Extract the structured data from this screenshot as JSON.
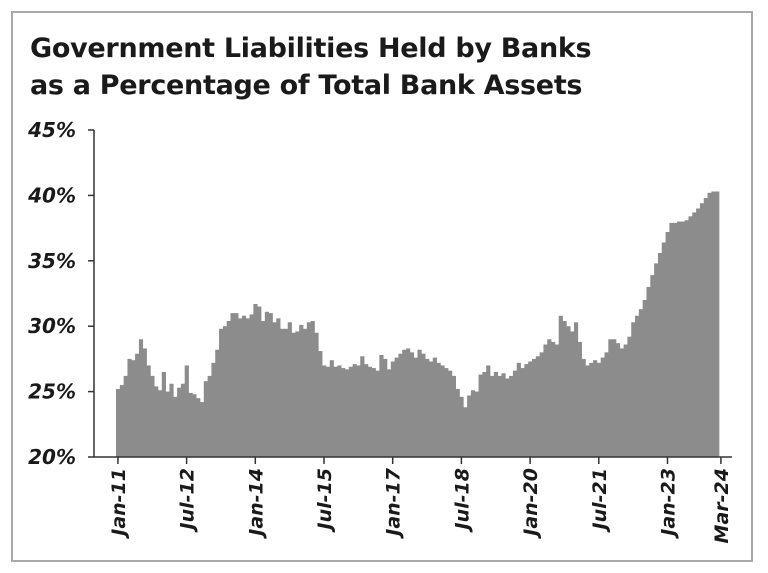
{
  "chart_data": {
    "type": "bar",
    "title_lines": [
      "Government Liabilities Held by Banks",
      "as a Percentage of Total Bank Assets"
    ],
    "xlabel": "",
    "ylabel": "",
    "ylim": [
      20,
      45
    ],
    "y_ticks": [
      {
        "value": 20,
        "label": "20%"
      },
      {
        "value": 25,
        "label": "25%"
      },
      {
        "value": 30,
        "label": "30%"
      },
      {
        "value": 35,
        "label": "35%"
      },
      {
        "value": 40,
        "label": "40%"
      },
      {
        "value": 45,
        "label": "45%"
      }
    ],
    "x_ticks": [
      {
        "index": 0,
        "label": "Jan-11"
      },
      {
        "index": 18,
        "label": "Jul-12"
      },
      {
        "index": 36,
        "label": "Jan-14"
      },
      {
        "index": 54,
        "label": "Jul-15"
      },
      {
        "index": 72,
        "label": "Jan-17"
      },
      {
        "index": 90,
        "label": "Jul-18"
      },
      {
        "index": 108,
        "label": "Jan-20"
      },
      {
        "index": 126,
        "label": "Jul-21"
      },
      {
        "index": 144,
        "label": "Jan-23"
      },
      {
        "index": 158,
        "label": "Mar-24"
      }
    ],
    "grid": false,
    "bar_color": "#8c8c8c",
    "values": [
      25.2,
      25.5,
      26.2,
      27.5,
      27.4,
      27.9,
      29.0,
      28.3,
      27.0,
      26.2,
      25.4,
      25.1,
      26.5,
      25.0,
      25.6,
      24.6,
      25.3,
      25.6,
      27.0,
      24.9,
      24.8,
      24.5,
      24.2,
      25.8,
      26.2,
      27.2,
      28.2,
      29.8,
      30.0,
      30.4,
      31.0,
      31.0,
      30.6,
      30.8,
      30.6,
      30.9,
      31.7,
      31.5,
      30.4,
      31.1,
      31.0,
      30.3,
      30.6,
      29.8,
      29.8,
      30.3,
      29.5,
      29.6,
      30.1,
      29.8,
      30.3,
      30.4,
      29.5,
      28.1,
      27.0,
      26.9,
      27.4,
      26.9,
      27.0,
      26.8,
      26.7,
      26.9,
      27.1,
      27.0,
      27.7,
      27.1,
      26.9,
      26.8,
      26.6,
      27.8,
      27.5,
      26.7,
      27.3,
      27.6,
      27.9,
      28.2,
      28.3,
      28.0,
      27.6,
      28.2,
      27.9,
      27.5,
      27.3,
      27.6,
      27.2,
      27.0,
      26.8,
      26.6,
      26.2,
      25.2,
      24.6,
      23.8,
      24.7,
      25.1,
      25.0,
      26.3,
      26.5,
      27.0,
      26.2,
      26.5,
      26.2,
      26.4,
      26.0,
      26.2,
      26.6,
      27.2,
      26.8,
      27.1,
      27.3,
      27.5,
      27.7,
      28.0,
      28.6,
      29.0,
      28.8,
      28.6,
      30.8,
      30.4,
      30.0,
      29.6,
      30.3,
      28.8,
      27.5,
      27.0,
      27.2,
      27.4,
      27.2,
      27.6,
      28.0,
      29.0,
      29.0,
      28.7,
      28.3,
      28.6,
      29.2,
      30.3,
      30.8,
      31.3,
      32.0,
      33.0,
      33.9,
      34.8,
      35.6,
      36.4,
      37.2,
      37.9,
      37.9,
      38.0,
      38.0,
      38.1,
      38.4,
      38.7,
      39.0,
      39.4,
      39.8,
      40.2,
      40.3,
      40.3
    ]
  }
}
